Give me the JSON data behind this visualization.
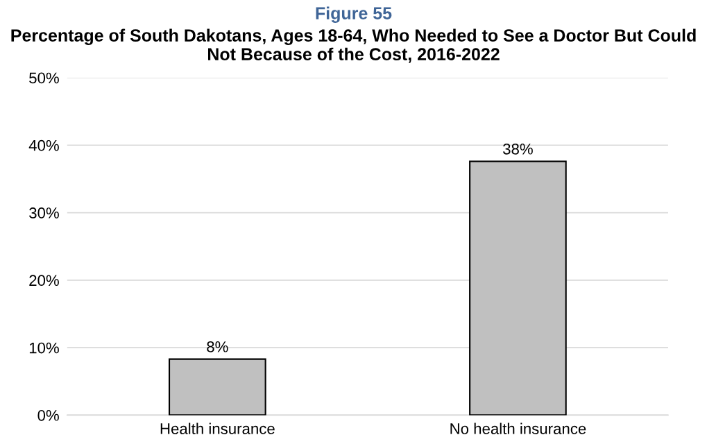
{
  "chart_data": {
    "type": "bar",
    "title": "Figure 55",
    "subtitle": "Percentage of South Dakotans, Ages 18-64, Who Needed to See a Doctor But Could Not Because of the Cost, 2016-2022",
    "categories": [
      "Health insurance",
      "No health insurance"
    ],
    "values": [
      8.3,
      37.6
    ],
    "value_labels": [
      "8%",
      "38%"
    ],
    "color": "#c0c0c0",
    "ylim": [
      0,
      50
    ],
    "yticks": [
      {
        "value": 0,
        "label": "0%"
      },
      {
        "value": 10,
        "label": "10%"
      },
      {
        "value": 20,
        "label": "20%"
      },
      {
        "value": 30,
        "label": "30%"
      },
      {
        "value": 40,
        "label": "40%"
      },
      {
        "value": 50,
        "label": "50%"
      }
    ],
    "grid": "y",
    "legend": false
  }
}
